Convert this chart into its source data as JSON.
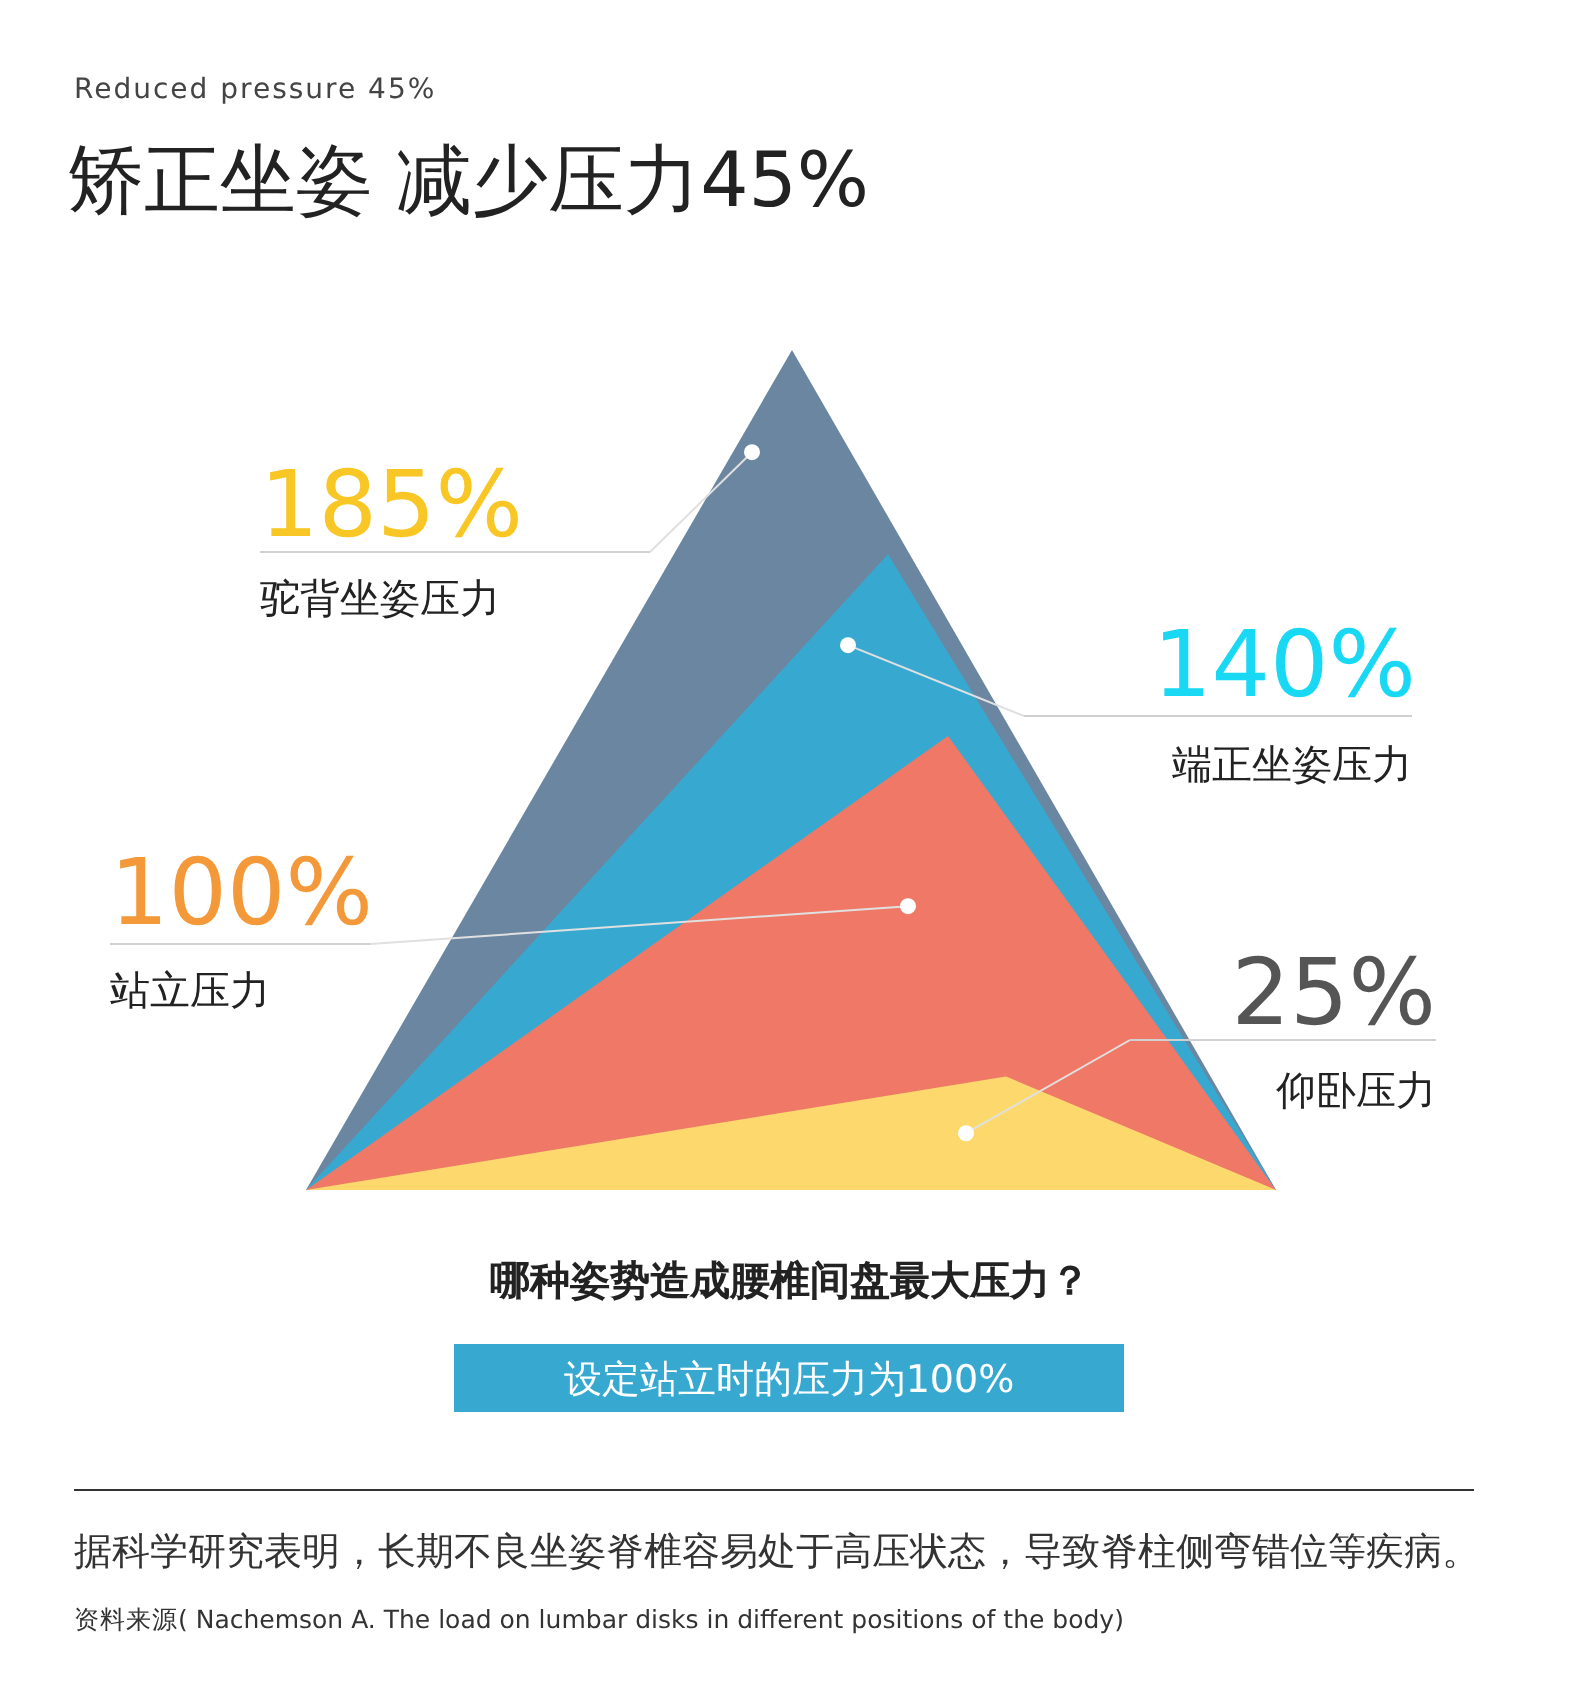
{
  "chart_data": {
    "type": "other",
    "subtitle": "Reduced pressure 45%",
    "title": "矫正坐姿 减少压力45%",
    "categories": [
      "驼背坐姿压力",
      "端正坐姿压力",
      "站立压力",
      "仰卧压力"
    ],
    "values": [
      185,
      140,
      100,
      25
    ],
    "value_labels": [
      "185%",
      "140%",
      "100%",
      "25%"
    ],
    "colors": [
      "#6b86a1",
      "#37a9d1",
      "#ef7867",
      "#fdd96d"
    ],
    "annotations": [
      "哪种姿势造成腰椎间盘最大压力？",
      "设定站立时的压力为100%",
      "据科学研究表明，长期不良坐姿脊椎容易处于高压状态，导致脊柱侧弯错位等疾病。",
      "资料来源( Nachemson A. The load on lumbar disks in different positions of the body)"
    ]
  }
}
